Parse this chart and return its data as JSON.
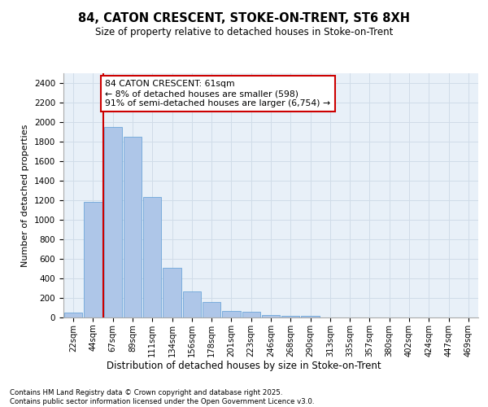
{
  "title1": "84, CATON CRESCENT, STOKE-ON-TRENT, ST6 8XH",
  "title2": "Size of property relative to detached houses in Stoke-on-Trent",
  "xlabel": "Distribution of detached houses by size in Stoke-on-Trent",
  "ylabel": "Number of detached properties",
  "categories": [
    "22sqm",
    "44sqm",
    "67sqm",
    "89sqm",
    "111sqm",
    "134sqm",
    "156sqm",
    "178sqm",
    "201sqm",
    "223sqm",
    "246sqm",
    "268sqm",
    "290sqm",
    "313sqm",
    "335sqm",
    "357sqm",
    "380sqm",
    "402sqm",
    "424sqm",
    "447sqm",
    "469sqm"
  ],
  "values": [
    50,
    1180,
    1950,
    1850,
    1230,
    510,
    265,
    160,
    70,
    55,
    25,
    20,
    15,
    3,
    1,
    1,
    1,
    0,
    0,
    0,
    0
  ],
  "bar_color": "#aec6e8",
  "bar_edge_color": "#5b9bd5",
  "annotation_text": "84 CATON CRESCENT: 61sqm\n← 8% of detached houses are smaller (598)\n91% of semi-detached houses are larger (6,754) →",
  "annotation_box_color": "#ffffff",
  "annotation_box_edge": "#cc0000",
  "grid_color": "#d0dce8",
  "bg_color": "#e8f0f8",
  "ylim": [
    0,
    2500
  ],
  "yticks": [
    0,
    200,
    400,
    600,
    800,
    1000,
    1200,
    1400,
    1600,
    1800,
    2000,
    2200,
    2400
  ],
  "footer": "Contains HM Land Registry data © Crown copyright and database right 2025.\nContains public sector information licensed under the Open Government Licence v3.0.",
  "vline_color": "#cc0000",
  "vline_x": 1.5
}
